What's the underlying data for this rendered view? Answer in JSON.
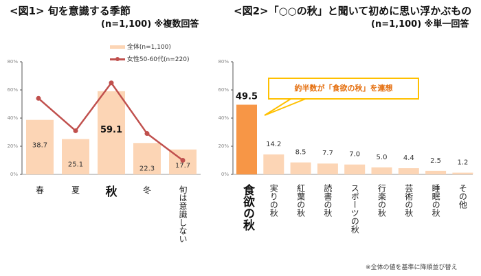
{
  "colors": {
    "bar_light": "#fcd5b5",
    "bar_highlight": "#f79646",
    "line": "#c0504d",
    "callout_border": "#ffc000",
    "callout_text": "#e46c0a"
  },
  "chart_data": [
    {
      "type": "bar",
      "title": "<図1> 旬を意識する季節",
      "subtitle": "(n=1,100) ※複数回答",
      "categories": [
        "春",
        "夏",
        "秋",
        "冬",
        "旬は意識しない"
      ],
      "ylim": [
        0,
        80
      ],
      "yticks": [
        "0%",
        "20%",
        "40%",
        "60%",
        "80%"
      ],
      "series": [
        {
          "name": "全体(n=1,100)",
          "type": "bar",
          "values": [
            38.7,
            25.1,
            59.1,
            22.3,
            17.7
          ],
          "labels": [
            "38.7",
            "25.1",
            "59.1",
            "22.3",
            "17.7"
          ]
        },
        {
          "name": "女性50-60代(n=220)",
          "type": "line",
          "values": [
            54,
            31,
            65,
            29,
            10
          ]
        }
      ],
      "highlight_index": 2,
      "legend": "top-right"
    },
    {
      "type": "bar",
      "title": "<図2>「○○の秋」と聞いて初めに思い浮かぶもの",
      "subtitle": "(n=1,100) ※単一回答",
      "categories": [
        "食欲の秋",
        "実りの秋",
        "紅葉の秋",
        "読書の秋",
        "スポーツの秋",
        "行楽の秋",
        "芸術の秋",
        "睡眠の秋",
        "その他"
      ],
      "ylim": [
        0,
        80
      ],
      "yticks": [
        "0%",
        "20%",
        "40%",
        "60%",
        "80%"
      ],
      "values": [
        49.5,
        14.2,
        8.5,
        7.7,
        7.0,
        5.0,
        4.4,
        2.5,
        1.2
      ],
      "labels": [
        "49.5",
        "14.2",
        "8.5",
        "7.7",
        "7.0",
        "5.0",
        "4.4",
        "2.5",
        "1.2"
      ],
      "highlight_index": 0,
      "annotation": "約半数が「食欲の秋」を連想",
      "footnote": "※全体の値を基準に降順並び替え"
    }
  ]
}
